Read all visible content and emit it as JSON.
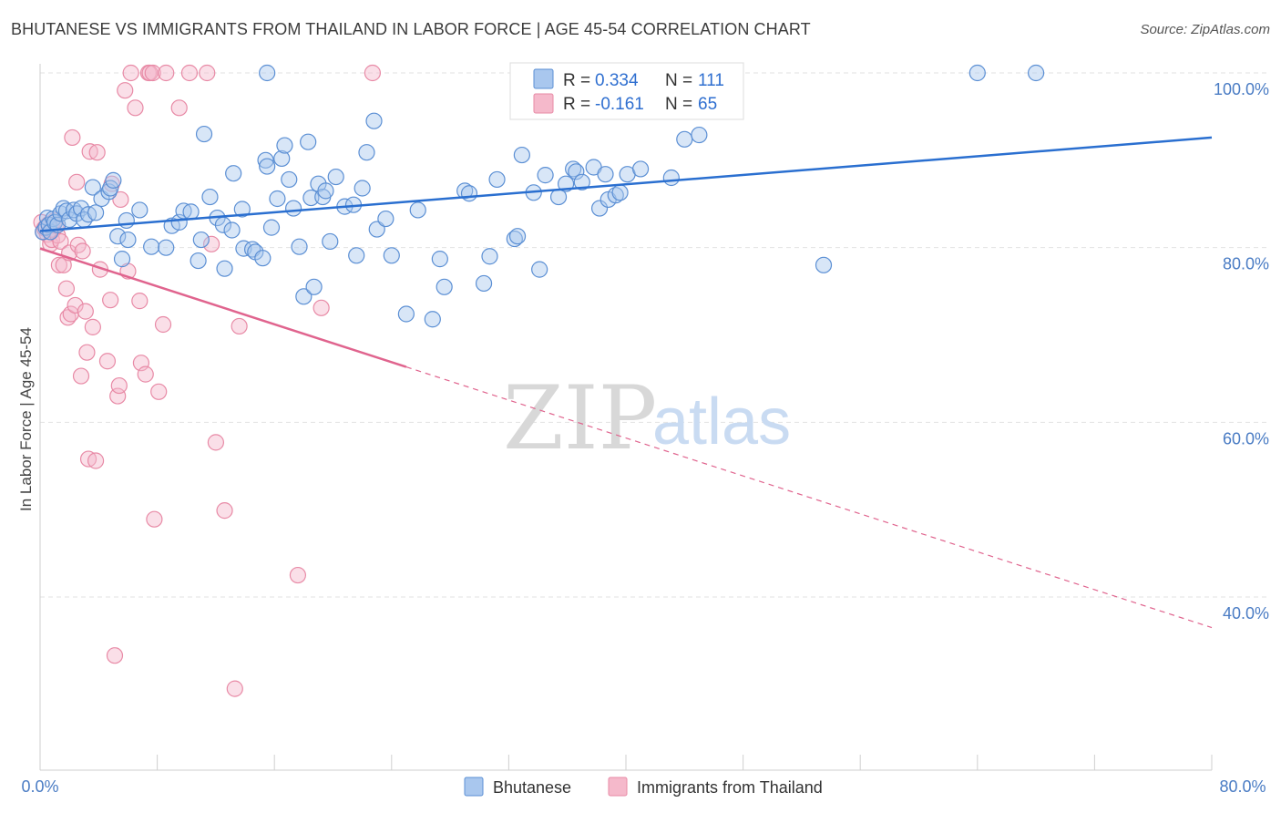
{
  "title": "BHUTANESE VS IMMIGRANTS FROM THAILAND IN LABOR FORCE | AGE 45-54 CORRELATION CHART",
  "source": "Source: ZipAtlas.com",
  "watermark": {
    "zip": "ZIP",
    "atlas": "atlas"
  },
  "colors": {
    "blue_fill": "#a9c7ee",
    "blue_stroke": "#5b8fd4",
    "blue_line": "#2a6fd0",
    "pink_fill": "#f5b9cb",
    "pink_stroke": "#e88aa6",
    "pink_line": "#e0648e",
    "tick_label": "#4a7cc4",
    "grid": "#e2e2e2"
  },
  "legend": {
    "r_label": "R =",
    "n_label": "N =",
    "blue_r": "0.334",
    "blue_n": "111",
    "pink_r": "-0.161",
    "pink_n": "65"
  },
  "chart_data": {
    "type": "scatter",
    "title": "BHUTANESE VS IMMIGRANTS FROM THAILAND IN LABOR FORCE | AGE 45-54 CORRELATION CHART",
    "xlabel": "",
    "ylabel": "In Labor Force | Age 45-54",
    "xlim": [
      0,
      80
    ],
    "ylim": [
      20,
      100
    ],
    "x_tick_labels": [
      "0.0%",
      "80.0%"
    ],
    "y_tick_labels": [
      "100.0%",
      "80.0%",
      "60.0%",
      "40.0%"
    ],
    "y_ticks": [
      100,
      80,
      60,
      40
    ],
    "grid": true,
    "legend_position": "top-center",
    "series": [
      {
        "name": "Bhutanese",
        "r": 0.334,
        "n": 111,
        "trend": {
          "x": [
            0,
            80
          ],
          "y": [
            81.9,
            92.6
          ],
          "dashed_from_x": null
        },
        "points": [
          [
            0.2,
            81.8
          ],
          [
            0.4,
            82.3
          ],
          [
            0.5,
            83.4
          ],
          [
            0.6,
            82.6
          ],
          [
            0.7,
            81.8
          ],
          [
            0.9,
            83.3
          ],
          [
            1.0,
            82.9
          ],
          [
            1.2,
            82.6
          ],
          [
            1.4,
            83.9
          ],
          [
            1.6,
            84.5
          ],
          [
            1.8,
            84.2
          ],
          [
            2.0,
            83.2
          ],
          [
            2.3,
            84.3
          ],
          [
            2.5,
            83.9
          ],
          [
            2.8,
            84.5
          ],
          [
            3.0,
            83.2
          ],
          [
            3.3,
            83.8
          ],
          [
            3.6,
            86.9
          ],
          [
            3.8,
            84.0
          ],
          [
            4.2,
            85.6
          ],
          [
            4.7,
            86.4
          ],
          [
            4.8,
            86.8
          ],
          [
            5.0,
            87.7
          ],
          [
            5.3,
            81.3
          ],
          [
            6.0,
            80.9
          ],
          [
            5.6,
            78.7
          ],
          [
            5.9,
            83.1
          ],
          [
            6.8,
            84.3
          ],
          [
            7.6,
            80.1
          ],
          [
            8.6,
            80.0
          ],
          [
            9.0,
            82.5
          ],
          [
            9.5,
            82.9
          ],
          [
            9.8,
            84.2
          ],
          [
            10.3,
            84.1
          ],
          [
            10.8,
            78.5
          ],
          [
            11.0,
            80.9
          ],
          [
            11.2,
            93.0
          ],
          [
            11.6,
            85.8
          ],
          [
            12.1,
            83.4
          ],
          [
            12.5,
            82.6
          ],
          [
            12.6,
            77.6
          ],
          [
            13.1,
            82.0
          ],
          [
            13.2,
            88.5
          ],
          [
            13.8,
            84.4
          ],
          [
            13.9,
            79.9
          ],
          [
            14.5,
            79.8
          ],
          [
            14.7,
            79.5
          ],
          [
            15.2,
            78.8
          ],
          [
            15.4,
            90.0
          ],
          [
            15.5,
            89.3
          ],
          [
            15.8,
            82.3
          ],
          [
            16.2,
            85.6
          ],
          [
            16.5,
            90.2
          ],
          [
            16.7,
            91.7
          ],
          [
            17.0,
            87.8
          ],
          [
            17.3,
            84.5
          ],
          [
            17.7,
            80.1
          ],
          [
            18.0,
            74.4
          ],
          [
            18.3,
            92.1
          ],
          [
            18.5,
            85.7
          ],
          [
            18.7,
            75.5
          ],
          [
            19.0,
            87.3
          ],
          [
            19.3,
            85.8
          ],
          [
            19.5,
            86.5
          ],
          [
            19.8,
            80.7
          ],
          [
            20.2,
            88.1
          ],
          [
            20.8,
            84.7
          ],
          [
            21.4,
            84.9
          ],
          [
            21.6,
            79.1
          ],
          [
            22.0,
            86.8
          ],
          [
            22.3,
            90.9
          ],
          [
            22.8,
            94.5
          ],
          [
            23.0,
            82.1
          ],
          [
            23.6,
            83.3
          ],
          [
            24.0,
            79.1
          ],
          [
            25.0,
            72.4
          ],
          [
            25.8,
            84.3
          ],
          [
            26.8,
            71.8
          ],
          [
            27.3,
            78.7
          ],
          [
            27.6,
            75.5
          ],
          [
            29.0,
            86.5
          ],
          [
            29.3,
            86.2
          ],
          [
            30.3,
            75.9
          ],
          [
            30.7,
            79.0
          ],
          [
            31.2,
            87.8
          ],
          [
            32.4,
            81.0
          ],
          [
            32.6,
            81.3
          ],
          [
            32.9,
            90.6
          ],
          [
            33.7,
            86.3
          ],
          [
            34.1,
            77.5
          ],
          [
            34.5,
            88.3
          ],
          [
            35.4,
            85.8
          ],
          [
            35.9,
            87.3
          ],
          [
            36.4,
            89.0
          ],
          [
            36.6,
            88.7
          ],
          [
            37.0,
            87.5
          ],
          [
            37.8,
            89.2
          ],
          [
            38.2,
            84.5
          ],
          [
            38.6,
            88.4
          ],
          [
            38.8,
            85.5
          ],
          [
            39.3,
            86.0
          ],
          [
            39.6,
            86.3
          ],
          [
            40.1,
            88.4
          ],
          [
            41.0,
            89.0
          ],
          [
            43.1,
            88.0
          ],
          [
            44.0,
            92.4
          ],
          [
            45.0,
            92.9
          ],
          [
            53.5,
            78.0
          ],
          [
            64.0,
            100
          ],
          [
            68.0,
            100
          ],
          [
            15.5,
            100
          ]
        ]
      },
      {
        "name": "Immigrants from Thailand",
        "r": -0.161,
        "n": 65,
        "trend": {
          "x": [
            0,
            80
          ],
          "y": [
            79.9,
            36.5
          ],
          "dashed_from_x": 25
        },
        "points": [
          [
            0.1,
            82.9
          ],
          [
            0.2,
            81.8
          ],
          [
            0.3,
            82.2
          ],
          [
            0.4,
            82.4
          ],
          [
            0.5,
            81.5
          ],
          [
            0.6,
            82.7
          ],
          [
            0.7,
            80.4
          ],
          [
            0.8,
            80.9
          ],
          [
            0.9,
            82.0
          ],
          [
            1.0,
            83.1
          ],
          [
            1.1,
            82.5
          ],
          [
            1.2,
            81.4
          ],
          [
            1.3,
            78.0
          ],
          [
            1.4,
            80.7
          ],
          [
            1.6,
            78.0
          ],
          [
            1.8,
            75.3
          ],
          [
            1.9,
            72.0
          ],
          [
            2.0,
            79.4
          ],
          [
            2.1,
            72.4
          ],
          [
            2.2,
            92.6
          ],
          [
            2.4,
            73.4
          ],
          [
            2.5,
            87.5
          ],
          [
            2.6,
            80.3
          ],
          [
            2.8,
            65.3
          ],
          [
            2.9,
            79.6
          ],
          [
            3.1,
            72.7
          ],
          [
            3.2,
            68.0
          ],
          [
            3.3,
            55.8
          ],
          [
            3.4,
            91.0
          ],
          [
            3.6,
            70.9
          ],
          [
            3.8,
            55.6
          ],
          [
            3.9,
            90.9
          ],
          [
            4.1,
            77.5
          ],
          [
            4.6,
            67.0
          ],
          [
            4.8,
            74.0
          ],
          [
            4.9,
            87.3
          ],
          [
            5.1,
            33.3
          ],
          [
            5.3,
            63.0
          ],
          [
            5.4,
            64.2
          ],
          [
            5.5,
            85.5
          ],
          [
            5.8,
            98.0
          ],
          [
            6.0,
            77.3
          ],
          [
            6.2,
            100
          ],
          [
            6.5,
            96.0
          ],
          [
            6.8,
            73.9
          ],
          [
            6.9,
            66.8
          ],
          [
            7.2,
            65.5
          ],
          [
            7.4,
            100
          ],
          [
            7.5,
            100
          ],
          [
            7.7,
            100
          ],
          [
            7.8,
            48.9
          ],
          [
            8.1,
            63.5
          ],
          [
            8.4,
            71.2
          ],
          [
            8.6,
            100
          ],
          [
            9.5,
            96.0
          ],
          [
            10.2,
            100
          ],
          [
            11.4,
            100
          ],
          [
            11.7,
            80.4
          ],
          [
            12.0,
            57.7
          ],
          [
            12.6,
            49.9
          ],
          [
            13.3,
            29.5
          ],
          [
            13.6,
            71.0
          ],
          [
            17.6,
            42.5
          ],
          [
            19.2,
            73.1
          ],
          [
            22.7,
            100
          ]
        ]
      }
    ]
  },
  "bottom_legend": {
    "items": [
      {
        "label": "Bhutanese",
        "color_key": "blue"
      },
      {
        "label": "Immigrants from Thailand",
        "color_key": "pink"
      }
    ]
  }
}
